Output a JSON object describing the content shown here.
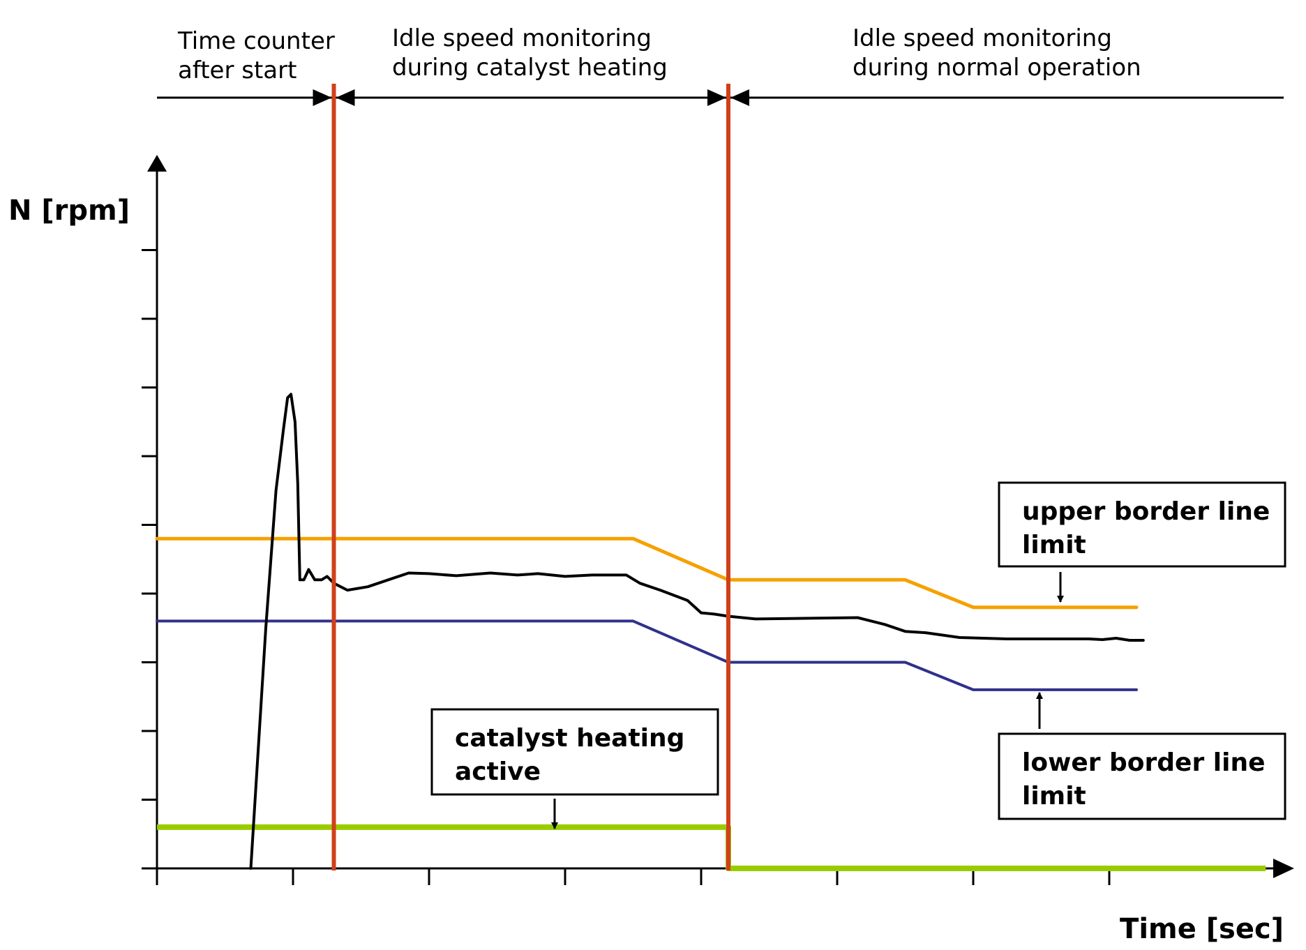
{
  "chart_data": {
    "type": "line",
    "ylabel": "N [rpm]",
    "xlabel": "Time [sec]",
    "xlim": [
      0,
      16
    ],
    "ylim": [
      0,
      10
    ],
    "x_ticks": [
      0,
      2,
      4,
      6,
      8,
      10,
      12,
      14
    ],
    "y_ticks": [
      1,
      2,
      3,
      4,
      5,
      6,
      7,
      8,
      9
    ],
    "grid": false,
    "phases": [
      {
        "label_lines": [
          "Time counter",
          "after start"
        ],
        "x_start": 0,
        "x_end": 2.6
      },
      {
        "label_lines": [
          "Idle speed monitoring",
          "during catalyst heating"
        ],
        "x_start": 2.6,
        "x_end": 8.4
      },
      {
        "label_lines": [
          "Idle speed monitoring",
          "during normal operation"
        ],
        "x_start": 8.4,
        "x_end": 16.7
      }
    ],
    "phase_boundaries": [
      2.6,
      8.4
    ],
    "series": [
      {
        "key": "speed",
        "color": "#000000",
        "x": [
          1.38,
          1.6,
          1.75,
          1.86,
          1.92,
          1.97,
          2.03,
          2.07,
          2.1,
          2.16,
          2.23,
          2.32,
          2.42,
          2.5,
          2.6,
          2.8,
          3.1,
          3.4,
          3.7,
          4.0,
          4.4,
          4.9,
          5.3,
          5.6,
          6.0,
          6.4,
          6.9,
          7.1,
          7.4,
          7.8,
          8.0,
          8.2,
          8.4,
          8.8,
          9.5,
          10.3,
          10.7,
          11.0,
          11.3,
          11.8,
          12.5,
          13.2,
          13.7,
          13.9,
          14.1,
          14.3,
          14.5
        ],
        "y": [
          0,
          3.5,
          5.5,
          6.4,
          6.85,
          6.9,
          6.5,
          5.6,
          4.2,
          4.2,
          4.35,
          4.2,
          4.2,
          4.25,
          4.15,
          4.05,
          4.1,
          4.2,
          4.3,
          4.29,
          4.26,
          4.3,
          4.27,
          4.29,
          4.25,
          4.27,
          4.27,
          4.15,
          4.05,
          3.9,
          3.72,
          3.7,
          3.67,
          3.63,
          3.64,
          3.65,
          3.55,
          3.45,
          3.43,
          3.36,
          3.34,
          3.34,
          3.34,
          3.33,
          3.35,
          3.32,
          3.32
        ]
      },
      {
        "key": "upper",
        "color": "#f5a100",
        "x": [
          0,
          7.0,
          8.4,
          11.0,
          12.0,
          14.4
        ],
        "y": [
          4.8,
          4.8,
          4.2,
          4.2,
          3.8,
          3.8
        ]
      },
      {
        "key": "lower",
        "color": "#30308c",
        "x": [
          0,
          7.0,
          8.4,
          11.0,
          12.0,
          14.4
        ],
        "y": [
          3.6,
          3.6,
          3.0,
          3.0,
          2.6,
          2.6
        ]
      },
      {
        "key": "catalyst",
        "color": "#99cc00",
        "x": [
          0,
          8.4,
          8.4,
          16.3
        ],
        "y": [
          0.6,
          0.6,
          0,
          0
        ]
      }
    ],
    "boundary_color": "#d0401a",
    "annotations": [
      {
        "key": "upper",
        "text_lines": [
          "upper border line",
          "limit"
        ]
      },
      {
        "key": "lower",
        "text_lines": [
          "lower border line",
          "limit"
        ]
      },
      {
        "key": "catalyst",
        "text_lines": [
          "catalyst heating",
          "active"
        ]
      }
    ]
  }
}
